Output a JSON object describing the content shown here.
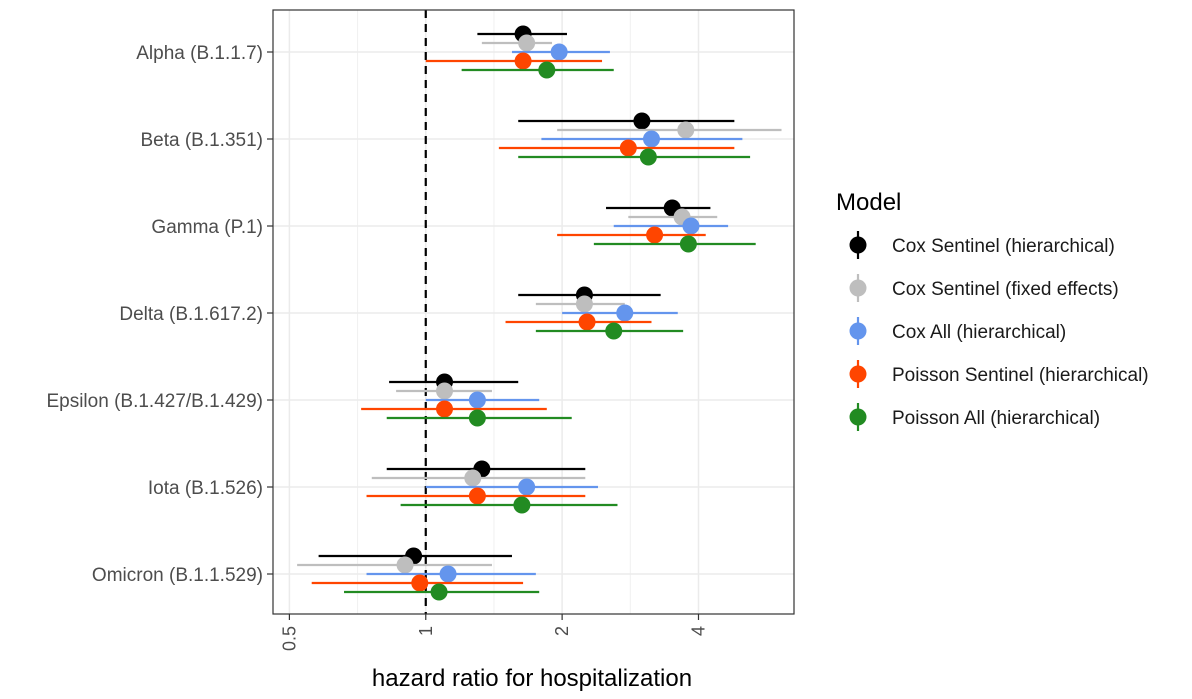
{
  "chart_data": {
    "type": "forest",
    "xlabel": "hazard ratio for hospitalization",
    "x_scale": "log2",
    "xlim": [
      0.46,
      6.5
    ],
    "x_ticks": [
      0.5,
      1,
      2,
      4
    ],
    "x_tick_labels": [
      "0.5",
      "1",
      "2",
      "4"
    ],
    "reference_line": 1,
    "grid": true,
    "legend_title": "Model",
    "legend_position": "right",
    "categories": [
      "Alpha (B.1.1.7)",
      "Beta (B.1.351)",
      "Gamma (P.1)",
      "Delta (B.1.617.2)",
      "Epsilon (B.1.427/B.1.429)",
      "Iota (B.1.526)",
      "Omicron (B.1.1.529)"
    ],
    "series": [
      {
        "name": "Cox Sentinel (hierarchical)",
        "color": "#000000",
        "estimates": [
          1.64,
          3.0,
          3.5,
          2.24,
          1.1,
          1.33,
          0.94
        ],
        "lower": [
          1.3,
          1.6,
          2.5,
          1.6,
          0.83,
          0.82,
          0.58
        ],
        "upper": [
          2.05,
          4.8,
          4.25,
          3.3,
          1.6,
          2.25,
          1.55
        ]
      },
      {
        "name": "Cox Sentinel (fixed effects)",
        "color": "#bebebe",
        "estimates": [
          1.67,
          3.75,
          3.68,
          2.24,
          1.1,
          1.27,
          0.9
        ],
        "lower": [
          1.33,
          1.95,
          2.8,
          1.75,
          0.86,
          0.76,
          0.52
        ],
        "upper": [
          1.9,
          6.1,
          4.4,
          2.75,
          1.4,
          2.25,
          1.4
        ]
      },
      {
        "name": "Cox All (hierarchical)",
        "color": "#6495ed",
        "estimates": [
          1.97,
          3.15,
          3.85,
          2.75,
          1.3,
          1.67,
          1.12
        ],
        "lower": [
          1.55,
          1.8,
          2.6,
          2.0,
          1.0,
          1.0,
          0.74
        ],
        "upper": [
          2.55,
          5.0,
          4.65,
          3.6,
          1.78,
          2.4,
          1.75
        ]
      },
      {
        "name": "Poisson Sentinel (hierarchical)",
        "color": "#ff4500",
        "estimates": [
          1.64,
          2.8,
          3.2,
          2.27,
          1.1,
          1.3,
          0.97
        ],
        "lower": [
          1.0,
          1.45,
          1.95,
          1.5,
          0.72,
          0.74,
          0.56
        ],
        "upper": [
          2.45,
          4.8,
          4.15,
          3.15,
          1.85,
          2.25,
          1.64
        ]
      },
      {
        "name": "Poisson All (hierarchical)",
        "color": "#228b22",
        "estimates": [
          1.85,
          3.1,
          3.8,
          2.6,
          1.3,
          1.63,
          1.07
        ],
        "lower": [
          1.2,
          1.6,
          2.35,
          1.75,
          0.82,
          0.88,
          0.66
        ],
        "upper": [
          2.6,
          5.2,
          5.35,
          3.7,
          2.1,
          2.65,
          1.78
        ]
      }
    ]
  }
}
